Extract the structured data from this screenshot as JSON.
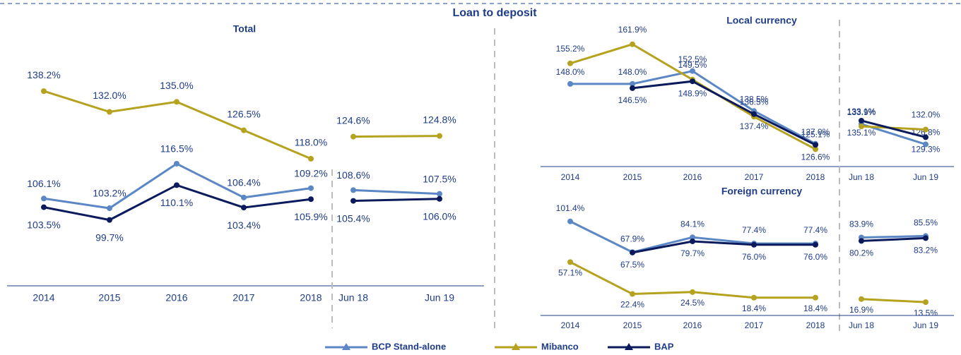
{
  "title": "Loan to deposit",
  "chart_data": [
    {
      "type": "line",
      "title": "Total",
      "categories": [
        "2014",
        "2015",
        "2016",
        "2017",
        "2018",
        "Jun 18",
        "Jun 19"
      ],
      "ylim": [
        80,
        157
      ],
      "series": [
        {
          "name": "BCP Stand-alone",
          "color": "#5b87c5",
          "values": [
            106.1,
            103.2,
            116.5,
            106.4,
            109.2,
            108.6,
            107.5
          ],
          "value_labels": [
            "106.1%",
            "103.2%",
            "116.5%",
            "106.4%",
            "109.2%",
            "108.6%",
            "107.5%"
          ]
        },
        {
          "name": "Mibanco",
          "color": "#b5a21e",
          "values": [
            138.2,
            132.0,
            135.0,
            126.5,
            118.0,
            124.6,
            124.8
          ],
          "value_labels": [
            "138.2%",
            "132.0%",
            "135.0%",
            "126.5%",
            "118.0%",
            "124.6%",
            "124.8%"
          ]
        },
        {
          "name": "BAP",
          "color": "#0a1a5c",
          "values": [
            103.5,
            99.7,
            110.1,
            103.4,
            105.9,
            105.4,
            106.0
          ],
          "value_labels": [
            "103.5%",
            "99.7%",
            "110.1%",
            "103.4%",
            "105.9%",
            "105.4%",
            "106.0%"
          ]
        }
      ]
    },
    {
      "type": "line",
      "title": "Local currency",
      "categories": [
        "2014",
        "2015",
        "2016",
        "2017",
        "2018",
        "Jun 18",
        "Jun 19"
      ],
      "ylim": [
        119,
        170
      ],
      "series": [
        {
          "name": "BCP Stand-alone",
          "color": "#5b87c5",
          "values": [
            148.0,
            148.0,
            152.5,
            138.5,
            127.0,
            133.9,
            126.8
          ],
          "value_labels": [
            "148.0%",
            "148.0%",
            "152.5%",
            "138.5%",
            "127.0%",
            "133.9%",
            "126.8%"
          ]
        },
        {
          "name": "Mibanco",
          "color": "#b5a21e",
          "values": [
            155.2,
            161.9,
            149.5,
            136.5,
            125.1,
            133.1,
            132.0
          ],
          "value_labels": [
            "155.2%",
            "161.9%",
            "149.5%",
            "136.5%",
            "125.1%",
            "133.1%",
            "132.0%"
          ]
        },
        {
          "name": "BAP",
          "color": "#0a1a5c",
          "values": [
            null,
            146.5,
            148.9,
            137.4,
            126.6,
            135.1,
            129.3
          ],
          "value_labels": [
            null,
            "146.5%",
            "148.9%",
            "137.4%",
            "126.6%",
            "135.1%",
            "129.3%"
          ]
        }
      ]
    },
    {
      "type": "line",
      "title": "Foreign currency",
      "categories": [
        "2014",
        "2015",
        "2016",
        "2017",
        "2018",
        "Jun 18",
        "Jun 19"
      ],
      "ylim": [
        -1,
        135
      ],
      "series": [
        {
          "name": "BCP Stand-alone",
          "color": "#5b87c5",
          "values": [
            101.4,
            67.9,
            84.1,
            77.4,
            77.4,
            83.9,
            85.5
          ],
          "value_labels": [
            "101.4%",
            "67.9%",
            "84.1%",
            "77.4%",
            "77.4%",
            "83.9%",
            "85.5%"
          ]
        },
        {
          "name": "Mibanco",
          "color": "#b5a21e",
          "values": [
            57.1,
            22.4,
            24.5,
            18.4,
            18.4,
            16.9,
            13.5
          ],
          "value_labels": [
            "57.1%",
            "22.4%",
            "24.5%",
            "18.4%",
            "18.4%",
            "16.9%",
            "13.5%"
          ]
        },
        {
          "name": "BAP",
          "color": "#0a1a5c",
          "values": [
            null,
            67.5,
            79.7,
            76.0,
            76.0,
            80.2,
            83.2
          ],
          "value_labels": [
            null,
            "67.5%",
            "79.7%",
            "76.0%",
            "76.0%",
            "80.2%",
            "83.2%"
          ]
        }
      ]
    }
  ]
}
